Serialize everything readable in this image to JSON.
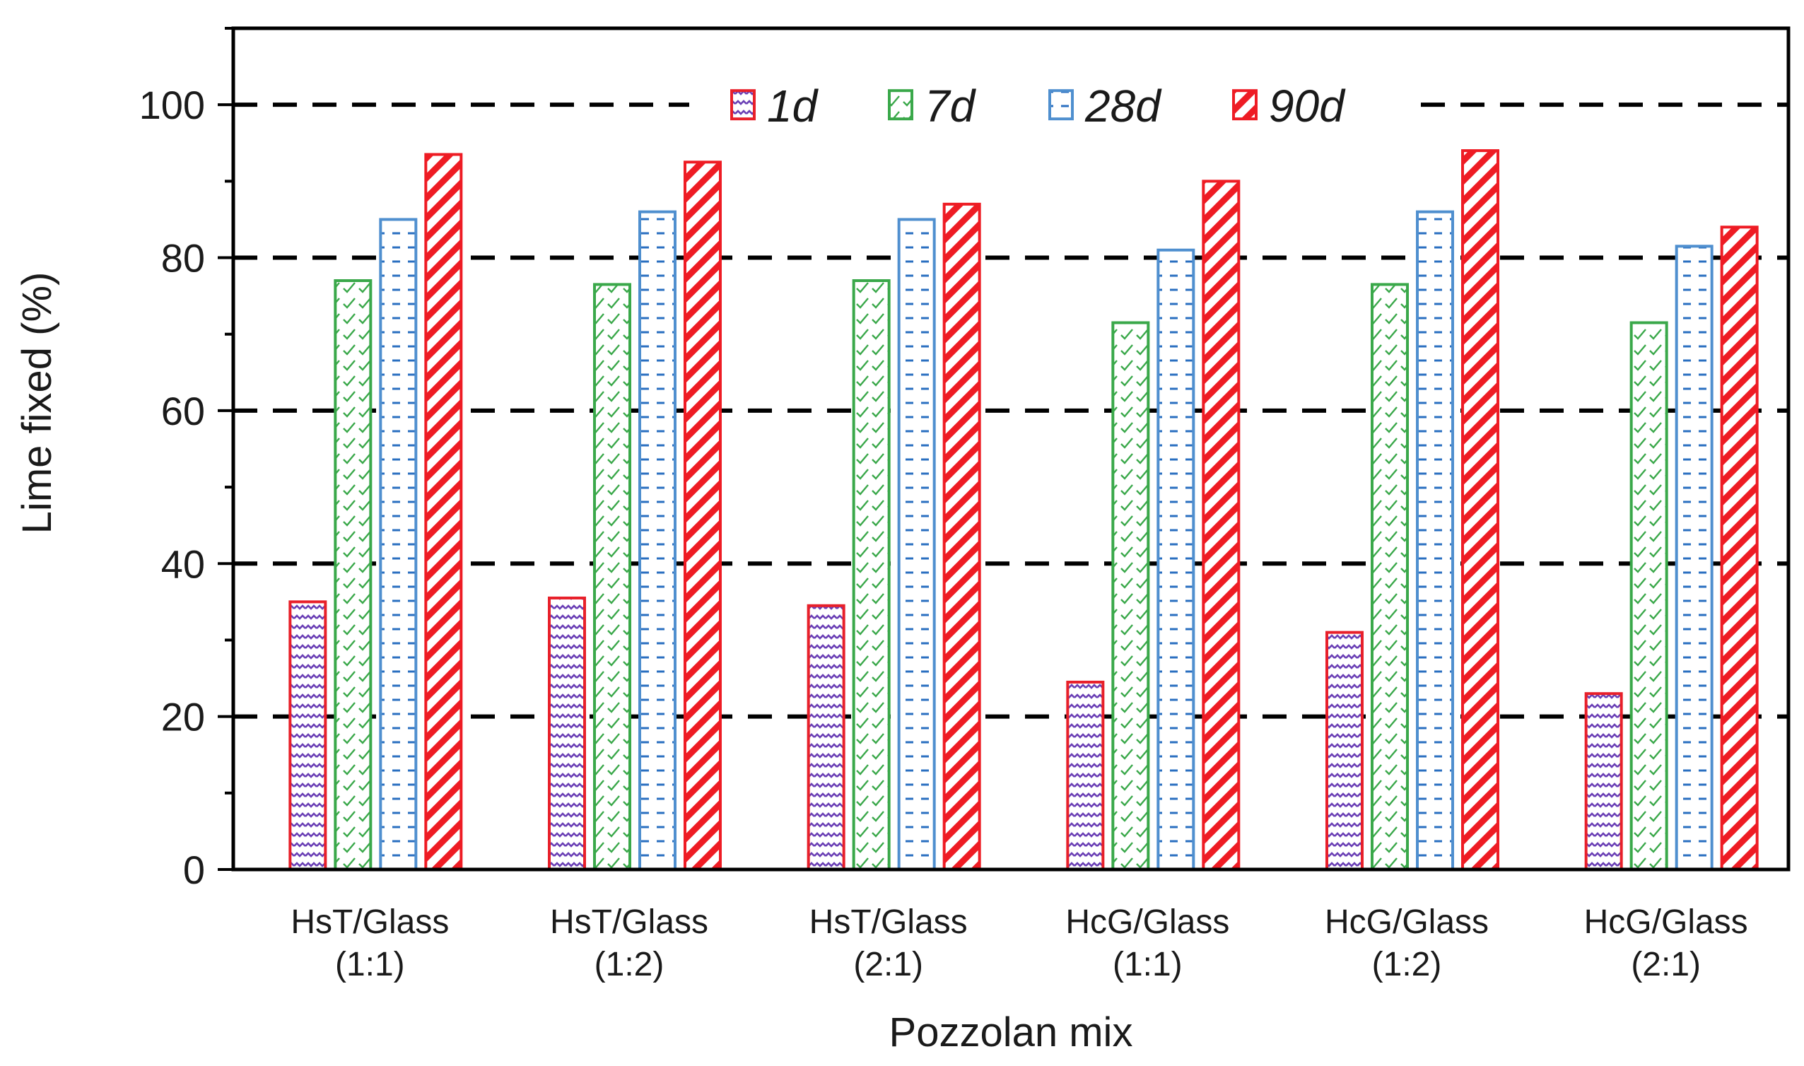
{
  "chart_data": {
    "type": "bar",
    "title": "",
    "xlabel": "Pozzolan mix",
    "ylabel": "Lime fixed (%)",
    "ylim": [
      0,
      110
    ],
    "yticks": [
      0,
      20,
      40,
      60,
      80,
      100
    ],
    "gridlines": [
      20,
      40,
      60,
      80,
      100
    ],
    "categories": [
      {
        "line1": "HsT/Glass",
        "line2": "(1:1)"
      },
      {
        "line1": "HsT/Glass",
        "line2": "(1:2)"
      },
      {
        "line1": "HsT/Glass",
        "line2": "(2:1)"
      },
      {
        "line1": "HcG/Glass",
        "line2": "(1:1)"
      },
      {
        "line1": "HcG/Glass",
        "line2": "(1:2)"
      },
      {
        "line1": "HcG/Glass",
        "line2": "(2:1)"
      }
    ],
    "series": [
      {
        "name": "1d",
        "color": "#e8202a",
        "fill": "#6a3fb5",
        "pattern": "wave",
        "values": [
          35,
          35.5,
          34.5,
          24.5,
          31,
          23
        ]
      },
      {
        "name": "7d",
        "color": "#3aa84a",
        "fill": "#3aa84a",
        "pattern": "check",
        "values": [
          77,
          76.5,
          77,
          71.5,
          76.5,
          71.5
        ]
      },
      {
        "name": "28d",
        "color": "#4f8fcf",
        "fill": "#2a6fc0",
        "pattern": "dash",
        "values": [
          85,
          86,
          85,
          81,
          86,
          81.5
        ]
      },
      {
        "name": "90d",
        "color": "#ee1c24",
        "fill": "#ee1c24",
        "pattern": "stripe",
        "values": [
          93.5,
          92.5,
          87,
          90,
          94,
          84
        ]
      }
    ],
    "legend_position": "top-center"
  }
}
